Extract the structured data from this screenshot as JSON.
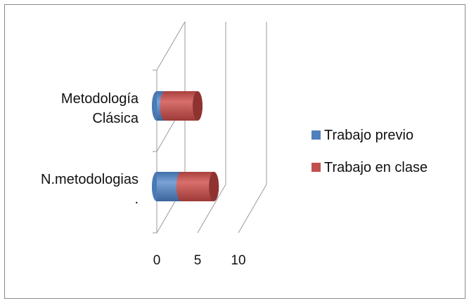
{
  "chart_data": {
    "type": "bar",
    "orientation": "horizontal",
    "stacked": true,
    "style": "3d-cylinder",
    "categories": [
      [
        "Metodología",
        "Clásica"
      ],
      [
        "N.metodologias",
        "."
      ]
    ],
    "series": [
      {
        "name": "Trabajo previo",
        "values": [
          1,
          3
        ],
        "color": "#4F81BD"
      },
      {
        "name": "Trabajo en clase",
        "values": [
          4,
          4
        ],
        "color": "#C0504D"
      }
    ],
    "xticks": [
      "0",
      "5",
      "10"
    ],
    "xlim": [
      0,
      10
    ],
    "legend": "right",
    "grid": true
  }
}
